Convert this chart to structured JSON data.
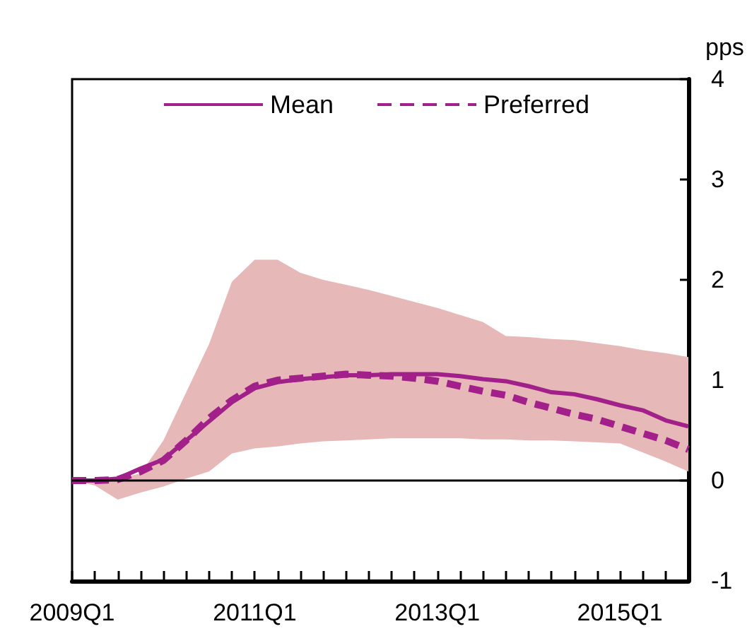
{
  "chart_data": {
    "type": "line",
    "ylabel": "pps",
    "categories": [
      "2009Q1",
      null,
      null,
      null,
      null,
      null,
      null,
      null,
      "2011Q1",
      null,
      null,
      null,
      null,
      null,
      null,
      null,
      "2013Q1",
      null,
      null,
      null,
      null,
      null,
      null,
      null,
      "2015Q1",
      null,
      null,
      null
    ],
    "series": [
      {
        "name": "Mean",
        "color": "#a2208a",
        "line_style": "solid",
        "values": [
          0,
          0,
          0.02,
          0.12,
          0.21,
          0.4,
          0.59,
          0.78,
          0.92,
          0.98,
          1.01,
          1.03,
          1.05,
          1.05,
          1.06,
          1.06,
          1.06,
          1.04,
          1.01,
          0.99,
          0.94,
          0.88,
          0.86,
          0.81,
          0.75,
          0.7,
          0.6,
          0.54
        ],
        "lower": [
          0,
          -0.05,
          -0.19,
          -0.12,
          -0.06,
          0.02,
          0.09,
          0.27,
          0.32,
          0.34,
          0.37,
          0.39,
          0.4,
          0.41,
          0.42,
          0.42,
          0.42,
          0.42,
          0.41,
          0.41,
          0.4,
          0.4,
          0.39,
          0.38,
          0.37,
          0.28,
          0.19,
          0.09
        ],
        "upper": [
          0,
          0,
          0.02,
          0.07,
          0.4,
          0.88,
          1.36,
          1.98,
          2.2,
          2.2,
          2.07,
          2.0,
          1.95,
          1.9,
          1.84,
          1.78,
          1.72,
          1.65,
          1.58,
          1.44,
          1.43,
          1.41,
          1.4,
          1.37,
          1.34,
          1.3,
          1.27,
          1.23
        ]
      },
      {
        "name": "Preferred",
        "color": "#a2208a",
        "line_style": "dashed",
        "values": [
          0,
          0,
          0.01,
          0.09,
          0.2,
          0.4,
          0.62,
          0.8,
          0.94,
          1.0,
          1.02,
          1.04,
          1.06,
          1.05,
          1.04,
          1.02,
          0.99,
          0.94,
          0.89,
          0.85,
          0.78,
          0.72,
          0.66,
          0.61,
          0.54,
          0.47,
          0.4,
          0.31
        ]
      }
    ],
    "ylim": [
      -1,
      4
    ],
    "yticks": [
      -1,
      0,
      1,
      2,
      3,
      4
    ],
    "ref_lines": [
      {
        "axis": "y",
        "value": 0,
        "label": null,
        "color": "#000000"
      }
    ],
    "grid": false,
    "legend": "top",
    "marker": "none"
  }
}
